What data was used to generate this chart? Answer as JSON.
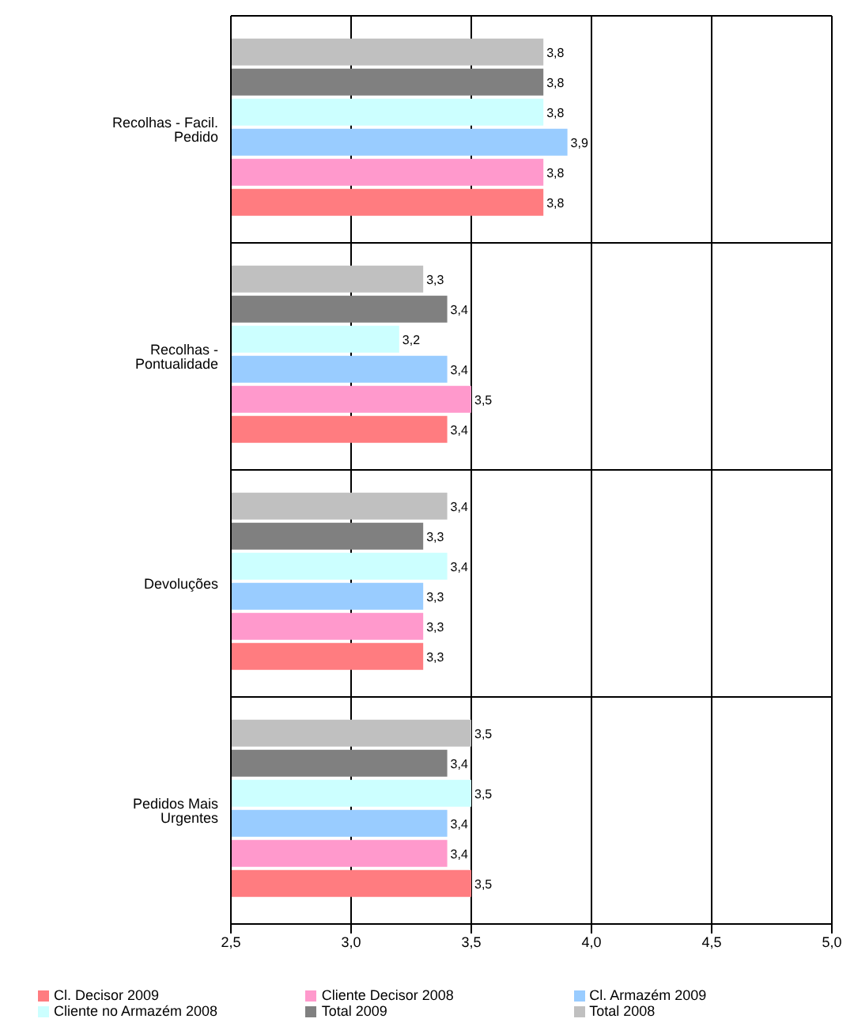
{
  "chart_data": {
    "type": "bar",
    "orientation": "horizontal",
    "categories": [
      "Recolhas - Facil. Pedido",
      "Recolhas - Pontualidade",
      "Devoluções",
      "Pedidos Mais Urgentes"
    ],
    "series": [
      {
        "name": "Cl. Decisor 2009",
        "color": "#ff7c80",
        "values": [
          3.8,
          3.4,
          3.3,
          3.5
        ],
        "value_labels": [
          "3,8",
          "3,4",
          "3,3",
          "3,5"
        ]
      },
      {
        "name": "Cliente Decisor 2008",
        "color": "#ff99cc",
        "values": [
          3.8,
          3.5,
          3.3,
          3.4
        ],
        "value_labels": [
          "3,8",
          "3,5",
          "3,3",
          "3,4"
        ]
      },
      {
        "name": "Cl. Armazém 2009",
        "color": "#99ccff",
        "values": [
          3.9,
          3.4,
          3.3,
          3.4
        ],
        "value_labels": [
          "3,9",
          "3,4",
          "3,3",
          "3,4"
        ]
      },
      {
        "name": "Cliente no Armazém 2008",
        "color": "#ccffff",
        "values": [
          3.8,
          3.2,
          3.4,
          3.5
        ],
        "value_labels": [
          "3,8",
          "3,2",
          "3,4",
          "3,5"
        ]
      },
      {
        "name": "Total 2009",
        "color": "#808080",
        "values": [
          3.8,
          3.4,
          3.3,
          3.4
        ],
        "value_labels": [
          "3,8",
          "3,4",
          "3,3",
          "3,4"
        ]
      },
      {
        "name": "Total 2008",
        "color": "#c0c0c0",
        "values": [
          3.8,
          3.3,
          3.4,
          3.5
        ],
        "value_labels": [
          "3,8",
          "3,3",
          "3,4",
          "3,5"
        ]
      }
    ],
    "xlim": [
      2.5,
      5
    ],
    "xticks": [
      {
        "value": 2.5,
        "label": "2,5"
      },
      {
        "value": 3,
        "label": "3,0"
      },
      {
        "value": 3.5,
        "label": "3,5"
      },
      {
        "value": 4,
        "label": "4,0"
      },
      {
        "value": 4.5,
        "label": "4,5"
      },
      {
        "value": 5,
        "label": "5,0"
      }
    ],
    "grid": true,
    "legend": "bottom"
  }
}
